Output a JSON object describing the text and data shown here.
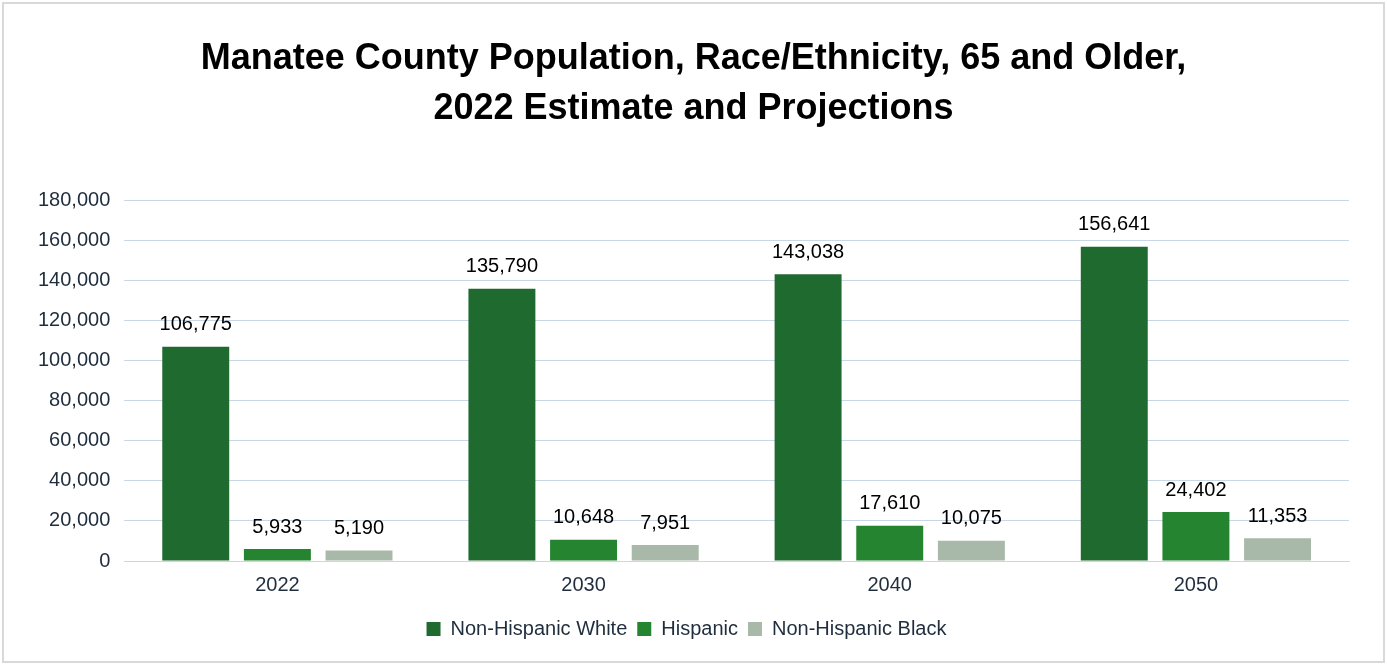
{
  "chart_data": {
    "type": "bar",
    "title": "Manatee County Population, Race/Ethnicity, 65 and Older, 2022 Estimate and Projections",
    "categories": [
      "2022",
      "2030",
      "2040",
      "2050"
    ],
    "series": [
      {
        "name": "Non-Hispanic White",
        "color": "#1f6a2f",
        "values": [
          106775,
          135790,
          143038,
          156641
        ],
        "value_labels": [
          "106,775",
          "135,790",
          "143,038",
          "156,641"
        ]
      },
      {
        "name": "Hispanic",
        "color": "#25842f",
        "values": [
          5933,
          10648,
          17610,
          24402
        ],
        "value_labels": [
          "5,933",
          "10,648",
          "17,610",
          "24,402"
        ]
      },
      {
        "name": "Non-Hispanic Black",
        "color": "#a9b9a9",
        "values": [
          5190,
          7951,
          10075,
          11353
        ],
        "value_labels": [
          "5,190",
          "7,951",
          "10,075",
          "11,353"
        ]
      }
    ],
    "ylim": [
      0,
      180000
    ],
    "yticks": [
      {
        "value": 0,
        "label": "0"
      },
      {
        "value": 20000,
        "label": "20,000"
      },
      {
        "value": 40000,
        "label": "40,000"
      },
      {
        "value": 60000,
        "label": "60,000"
      },
      {
        "value": 80000,
        "label": "80,000"
      },
      {
        "value": 100000,
        "label": "100,000"
      },
      {
        "value": 120000,
        "label": "120,000"
      },
      {
        "value": 140000,
        "label": "140,000"
      },
      {
        "value": 160000,
        "label": "160,000"
      },
      {
        "value": 180000,
        "label": "180,000"
      }
    ],
    "grid": "y",
    "legend": "bottom"
  }
}
